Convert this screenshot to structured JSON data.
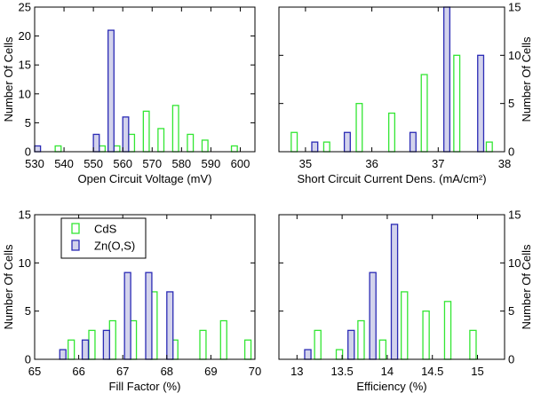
{
  "figure": {
    "background": "#ffffff"
  },
  "legend": {
    "entries": [
      {
        "label": "CdS",
        "color": "#33e633",
        "fill": "none"
      },
      {
        "label": "Zn(O,S)",
        "color": "#2b2bb5",
        "fill": "#d3d3ec"
      }
    ]
  },
  "chart_data": [
    {
      "id": "voc",
      "type": "bar",
      "title": "",
      "xlabel": "Open Circuit Voltage (mV)",
      "ylabel": "Number Of Cells",
      "xlim": [
        530,
        605
      ],
      "ylim": [
        0,
        25
      ],
      "xticks": [
        530,
        540,
        550,
        560,
        570,
        580,
        590,
        600
      ],
      "yticks": [
        0,
        5,
        10,
        15,
        20,
        25
      ],
      "ylabel_side": "left",
      "bar_width": 2,
      "series": [
        {
          "name": "CdS",
          "x": [
            538,
            553,
            558,
            563,
            568,
            573,
            578,
            583,
            588,
            598
          ],
          "values": [
            1,
            1,
            1,
            3,
            7,
            4,
            8,
            3,
            2,
            1
          ]
        },
        {
          "name": "Zn(O,S)",
          "x": [
            531,
            551,
            556,
            561
          ],
          "values": [
            1,
            3,
            21,
            6
          ]
        }
      ]
    },
    {
      "id": "jsc",
      "type": "bar",
      "title": "",
      "xlabel": "Short Circuit Current Dens. (mA/cm²)",
      "ylabel": "Number Of Cells",
      "xlim": [
        34.6,
        38
      ],
      "ylim": [
        0,
        15
      ],
      "xticks": [
        35,
        36,
        37,
        38
      ],
      "yticks": [
        0,
        5,
        10,
        15
      ],
      "ylabel_side": "right",
      "bar_width": 0.09,
      "series": [
        {
          "name": "CdS",
          "x": [
            34.83,
            35.32,
            35.81,
            36.3,
            36.79,
            37.28,
            37.77
          ],
          "values": [
            2,
            1,
            5,
            4,
            8,
            10,
            1
          ]
        },
        {
          "name": "Zn(O,S)",
          "x": [
            35.14,
            35.63,
            36.62,
            37.13,
            37.64
          ],
          "values": [
            1,
            2,
            2,
            15,
            10
          ]
        }
      ]
    },
    {
      "id": "ff",
      "type": "bar",
      "title": "",
      "xlabel": "Fill Factor (%)",
      "ylabel": "Number Of Cells",
      "xlim": [
        65,
        70
      ],
      "ylim": [
        0,
        15
      ],
      "xticks": [
        65,
        66,
        67,
        68,
        69,
        70
      ],
      "yticks": [
        0,
        5,
        10,
        15
      ],
      "ylabel_side": "left",
      "bar_width": 0.14,
      "series": [
        {
          "name": "CdS",
          "x": [
            65.83,
            66.3,
            66.77,
            67.24,
            67.71,
            68.18,
            68.82,
            69.29,
            69.84
          ],
          "values": [
            2,
            3,
            4,
            4,
            7,
            2,
            3,
            4,
            2
          ]
        },
        {
          "name": "Zn(O,S)",
          "x": [
            65.64,
            66.15,
            66.63,
            67.11,
            67.59,
            68.07
          ],
          "values": [
            1,
            2,
            3,
            9,
            9,
            7
          ]
        }
      ]
    },
    {
      "id": "eff",
      "type": "bar",
      "title": "",
      "xlabel": "Efficiency (%)",
      "ylabel": "Number Of Cells",
      "xlim": [
        12.8,
        15.3
      ],
      "ylim": [
        0,
        15
      ],
      "xticks": [
        13,
        13.5,
        14,
        14.5,
        15
      ],
      "yticks": [
        0,
        5,
        10,
        15
      ],
      "ylabel_side": "right",
      "bar_width": 0.07,
      "series": [
        {
          "name": "CdS",
          "x": [
            13.23,
            13.47,
            13.71,
            13.95,
            14.19,
            14.43,
            14.67,
            14.95
          ],
          "values": [
            3,
            1,
            4,
            2,
            7,
            5,
            6,
            3
          ]
        },
        {
          "name": "Zn(O,S)",
          "x": [
            13.12,
            13.6,
            13.84,
            14.08
          ],
          "values": [
            1,
            3,
            9,
            14
          ]
        }
      ]
    }
  ]
}
